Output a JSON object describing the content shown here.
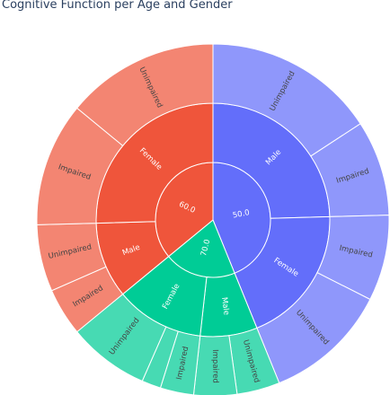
{
  "chart_data": {
    "type": "sunburst",
    "title": "Cognitive Function per Age and Gender",
    "hierarchy": [
      "age",
      "gender",
      "cognitive_function"
    ],
    "nodes": [
      {
        "label": "50.0",
        "value": 50,
        "color": "#636efa",
        "children": [
          {
            "label": "Male",
            "value": 28,
            "children": [
              {
                "label": "Unimpaired",
                "value": 18
              },
              {
                "label": "Impaired",
                "value": 10
              }
            ]
          },
          {
            "label": "Female",
            "value": 22,
            "children": [
              {
                "label": "Impaired",
                "value": 9
              },
              {
                "label": "Unimpaired",
                "value": 13
              }
            ]
          }
        ]
      },
      {
        "label": "70.0",
        "value": 23,
        "color": "#00cc96",
        "children": [
          {
            "label": "Male",
            "value": 9,
            "children": [
              {
                "label": "Unimpaired",
                "value": 4.5
              },
              {
                "label": "Impaired",
                "value": 4.5
              }
            ]
          },
          {
            "label": "Female",
            "value": 14,
            "children": [
              {
                "label": "Impaired",
                "value": 3.5
              },
              {
                "label": "",
                "value": 2
              },
              {
                "label": "Unimpaired",
                "value": 8.5
              }
            ]
          }
        ]
      },
      {
        "label": "60.0",
        "value": 41,
        "color": "#ef553b",
        "children": [
          {
            "label": "Male",
            "value": 12,
            "children": [
              {
                "label": "Impaired",
                "value": 5
              },
              {
                "label": "Unimpaired",
                "value": 7
              }
            ]
          },
          {
            "label": "Female",
            "value": 29,
            "children": [
              {
                "label": "Impaired",
                "value": 13
              },
              {
                "label": "Unimpaired",
                "value": 16
              }
            ]
          }
        ]
      }
    ]
  }
}
